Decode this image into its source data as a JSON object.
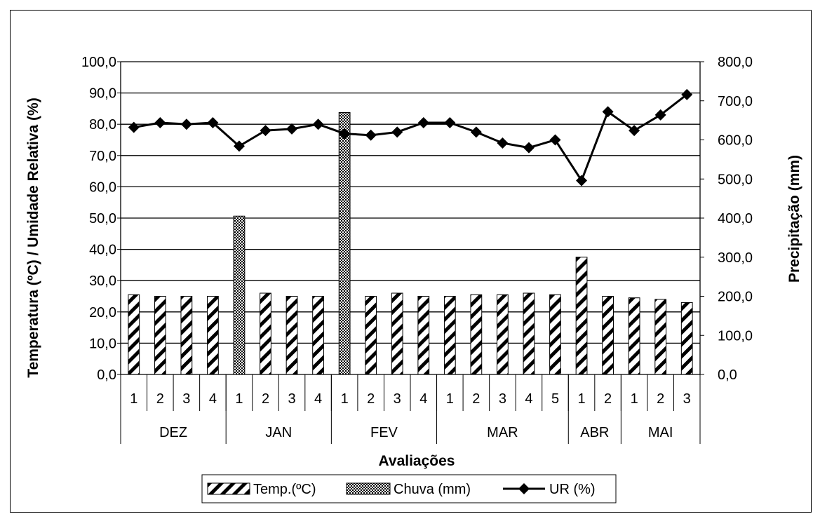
{
  "chart_data": {
    "type": "bar",
    "xlabel": "Avaliações",
    "ylabel_left": "Temperatura (ºC) / Umidade Relativa (%)",
    "ylabel_right": "Precipitação (mm)",
    "ylim_left": [
      0,
      100
    ],
    "ylim_right": [
      0,
      800
    ],
    "yticks_left": [
      "0,0",
      "10,0",
      "20,0",
      "30,0",
      "40,0",
      "50,0",
      "60,0",
      "70,0",
      "80,0",
      "90,0",
      "100,0"
    ],
    "yticks_right": [
      "0,0",
      "100,0",
      "200,0",
      "300,0",
      "400,0",
      "500,0",
      "600,0",
      "700,0",
      "800,0"
    ],
    "grid": true,
    "legend_position": "bottom",
    "categories": [
      {
        "month": "DEZ",
        "eval": "1"
      },
      {
        "month": "DEZ",
        "eval": "2"
      },
      {
        "month": "DEZ",
        "eval": "3"
      },
      {
        "month": "DEZ",
        "eval": "4"
      },
      {
        "month": "JAN",
        "eval": "1"
      },
      {
        "month": "JAN",
        "eval": "2"
      },
      {
        "month": "JAN",
        "eval": "3"
      },
      {
        "month": "JAN",
        "eval": "4"
      },
      {
        "month": "FEV",
        "eval": "1"
      },
      {
        "month": "FEV",
        "eval": "2"
      },
      {
        "month": "FEV",
        "eval": "3"
      },
      {
        "month": "FEV",
        "eval": "4"
      },
      {
        "month": "MAR",
        "eval": "1"
      },
      {
        "month": "MAR",
        "eval": "2"
      },
      {
        "month": "MAR",
        "eval": "3"
      },
      {
        "month": "MAR",
        "eval": "4"
      },
      {
        "month": "MAR",
        "eval": "5"
      },
      {
        "month": "ABR",
        "eval": "1"
      },
      {
        "month": "ABR",
        "eval": "2"
      },
      {
        "month": "MAI",
        "eval": "1"
      },
      {
        "month": "MAI",
        "eval": "2"
      },
      {
        "month": "MAI",
        "eval": "3"
      }
    ],
    "months": [
      "DEZ",
      "JAN",
      "FEV",
      "MAR",
      "ABR",
      "MAI"
    ],
    "series": [
      {
        "name": "Temp.(ºC)",
        "kind": "bar-temp",
        "axis": "left",
        "values": [
          25.5,
          25,
          25,
          25,
          null,
          26,
          25,
          25,
          null,
          25,
          26,
          25,
          25,
          25.5,
          25.5,
          26,
          25.5,
          37.5,
          25,
          24.5,
          24,
          23
        ]
      },
      {
        "name": "Chuva (mm)",
        "kind": "bar-rain",
        "axis": "right",
        "values": [
          null,
          null,
          null,
          null,
          405,
          null,
          null,
          null,
          670,
          null,
          null,
          null,
          null,
          null,
          null,
          null,
          null,
          null,
          null,
          null,
          null,
          null
        ]
      },
      {
        "name": "UR (%)",
        "kind": "line",
        "axis": "left",
        "values": [
          79,
          80.5,
          80,
          80.5,
          73,
          78,
          78.5,
          80,
          77,
          76.5,
          77.5,
          80.5,
          80.5,
          77.5,
          74,
          72.5,
          75,
          62,
          84,
          78,
          83,
          89.5
        ]
      }
    ]
  }
}
